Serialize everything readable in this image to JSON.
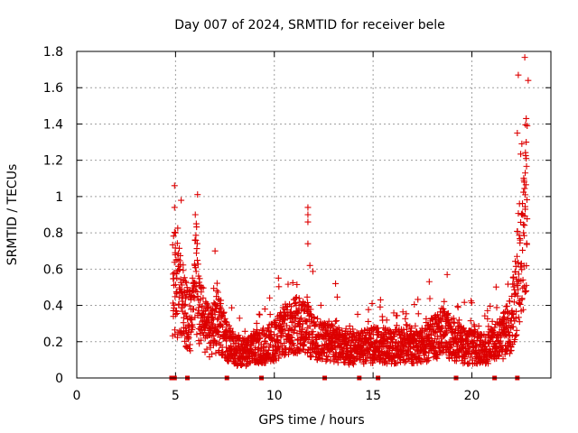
{
  "chart_data": {
    "type": "scatter",
    "title": "Day 007 of 2024, SRMTID for receiver bele",
    "xlabel": "GPS time / hours",
    "ylabel": "SRMTID / TECUs",
    "xlim": [
      0,
      24
    ],
    "ylim": [
      0,
      1.8
    ],
    "xticks": [
      "0",
      "5",
      "10",
      "15",
      "20"
    ],
    "yticks": [
      "0",
      "0.2",
      "0.4",
      "0.6",
      "0.8",
      "1",
      "1.2",
      "1.4",
      "1.6",
      "1.8"
    ],
    "grid": true,
    "marker": "+",
    "color": "#dd0000",
    "series": [
      {
        "name": "SRMTID",
        "anchors_hours_value": [
          [
            4.85,
            0.5
          ],
          [
            5.0,
            0.52
          ],
          [
            5.2,
            0.45
          ],
          [
            5.5,
            0.35
          ],
          [
            5.8,
            0.3
          ],
          [
            6.0,
            0.55
          ],
          [
            6.2,
            0.42
          ],
          [
            6.5,
            0.28
          ],
          [
            6.8,
            0.25
          ],
          [
            7.0,
            0.3
          ],
          [
            7.3,
            0.28
          ],
          [
            7.6,
            0.2
          ],
          [
            8.0,
            0.15
          ],
          [
            8.5,
            0.14
          ],
          [
            9.0,
            0.16
          ],
          [
            9.5,
            0.18
          ],
          [
            10.0,
            0.2
          ],
          [
            10.5,
            0.26
          ],
          [
            11.0,
            0.3
          ],
          [
            11.5,
            0.3
          ],
          [
            12.0,
            0.22
          ],
          [
            12.5,
            0.2
          ],
          [
            13.0,
            0.19
          ],
          [
            13.5,
            0.17
          ],
          [
            14.0,
            0.16
          ],
          [
            14.5,
            0.17
          ],
          [
            15.0,
            0.18
          ],
          [
            15.5,
            0.18
          ],
          [
            16.0,
            0.17
          ],
          [
            16.5,
            0.18
          ],
          [
            17.0,
            0.17
          ],
          [
            17.5,
            0.18
          ],
          [
            18.0,
            0.22
          ],
          [
            18.5,
            0.25
          ],
          [
            19.0,
            0.22
          ],
          [
            19.5,
            0.18
          ],
          [
            20.0,
            0.17
          ],
          [
            20.5,
            0.16
          ],
          [
            21.0,
            0.18
          ],
          [
            21.5,
            0.22
          ],
          [
            22.0,
            0.3
          ],
          [
            22.3,
            0.55
          ],
          [
            22.6,
            0.8
          ],
          [
            22.8,
            1.0
          ]
        ],
        "peaks_hours_value": [
          [
            4.95,
            1.06
          ],
          [
            4.95,
            0.94
          ],
          [
            5.0,
            0.8
          ],
          [
            4.98,
            0.69
          ],
          [
            6.0,
            0.9
          ],
          [
            6.05,
            0.85
          ],
          [
            7.0,
            0.7
          ],
          [
            11.7,
            0.94
          ],
          [
            11.7,
            0.9
          ],
          [
            11.7,
            0.86
          ],
          [
            11.7,
            0.74
          ],
          [
            11.8,
            0.62
          ],
          [
            13.1,
            0.52
          ],
          [
            18.75,
            0.57
          ],
          [
            22.35,
            1.67
          ],
          [
            22.3,
            1.35
          ],
          [
            22.85,
            1.64
          ],
          [
            22.75,
            1.43
          ],
          [
            22.8,
            1.39
          ],
          [
            22.75,
            1.3
          ],
          [
            22.75,
            1.21
          ],
          [
            22.7,
            1.13
          ],
          [
            22.65,
            1.08
          ],
          [
            22.7,
            1.01
          ],
          [
            22.7,
            0.93
          ]
        ]
      }
    ],
    "gap_markers_hours": [
      4.8,
      4.95,
      5.6,
      7.6,
      9.35,
      12.55,
      14.3,
      15.25,
      19.2,
      21.15,
      22.3
    ]
  }
}
